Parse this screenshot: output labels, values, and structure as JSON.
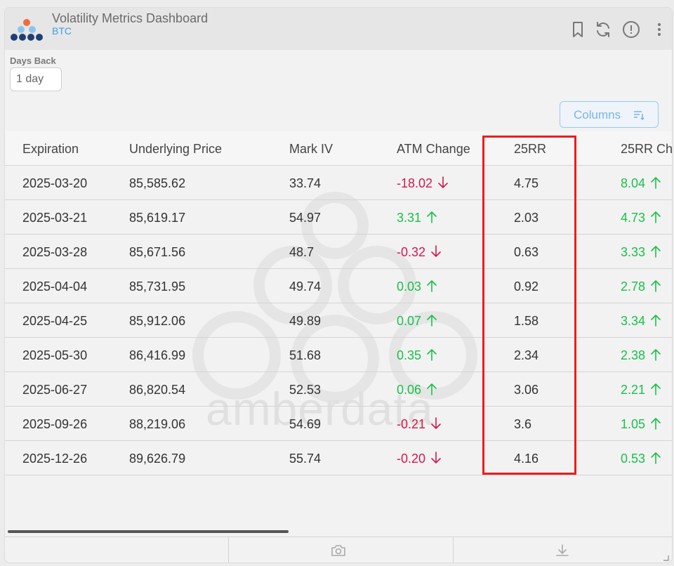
{
  "header": {
    "title": "Volatility Metrics Dashboard",
    "subtitle": "BTC",
    "icons": [
      "bookmark-icon",
      "refresh-icon",
      "info-icon",
      "more-vert-icon"
    ]
  },
  "controls": {
    "days_back_label": "Days Back",
    "days_back_value": "1 day",
    "columns_label": "Columns"
  },
  "table": {
    "columns": [
      "Expiration",
      "Underlying Price",
      "Mark IV",
      "ATM Change",
      "25RR",
      "25RR Ch"
    ],
    "rows": [
      {
        "expiration": "2025-03-20",
        "price": "85,585.62",
        "mark_iv": "33.74",
        "atm_change": "-18.02",
        "atm_dir": "down",
        "rr25": "4.75",
        "rr25_change": "8.04",
        "rr_dir": "up"
      },
      {
        "expiration": "2025-03-21",
        "price": "85,619.17",
        "mark_iv": "54.97",
        "atm_change": "3.31",
        "atm_dir": "up",
        "rr25": "2.03",
        "rr25_change": "4.73",
        "rr_dir": "up"
      },
      {
        "expiration": "2025-03-28",
        "price": "85,671.56",
        "mark_iv": "48.7",
        "atm_change": "-0.32",
        "atm_dir": "down",
        "rr25": "0.63",
        "rr25_change": "3.33",
        "rr_dir": "up"
      },
      {
        "expiration": "2025-04-04",
        "price": "85,731.95",
        "mark_iv": "49.74",
        "atm_change": "0.03",
        "atm_dir": "up",
        "rr25": "0.92",
        "rr25_change": "2.78",
        "rr_dir": "up"
      },
      {
        "expiration": "2025-04-25",
        "price": "85,912.06",
        "mark_iv": "49.89",
        "atm_change": "0.07",
        "atm_dir": "up",
        "rr25": "1.58",
        "rr25_change": "3.34",
        "rr_dir": "up"
      },
      {
        "expiration": "2025-05-30",
        "price": "86,416.99",
        "mark_iv": "51.68",
        "atm_change": "0.35",
        "atm_dir": "up",
        "rr25": "2.34",
        "rr25_change": "2.38",
        "rr_dir": "up"
      },
      {
        "expiration": "2025-06-27",
        "price": "86,820.54",
        "mark_iv": "52.53",
        "atm_change": "0.06",
        "atm_dir": "up",
        "rr25": "3.06",
        "rr25_change": "2.21",
        "rr_dir": "up"
      },
      {
        "expiration": "2025-09-26",
        "price": "88,219.06",
        "mark_iv": "54.69",
        "atm_change": "-0.21",
        "atm_dir": "down",
        "rr25": "3.6",
        "rr25_change": "1.05",
        "rr_dir": "up"
      },
      {
        "expiration": "2025-12-26",
        "price": "89,626.79",
        "mark_iv": "55.74",
        "atm_change": "-0.20",
        "atm_dir": "down",
        "rr25": "4.16",
        "rr25_change": "0.53",
        "rr_dir": "up"
      }
    ]
  },
  "watermark": "amberdata",
  "footer": {
    "icons": [
      "camera-icon",
      "download-icon"
    ]
  },
  "colors": {
    "positive": "#19c04b",
    "negative": "#d6174a",
    "accent": "#3aa0e8",
    "highlight": "#ee1c1c"
  }
}
